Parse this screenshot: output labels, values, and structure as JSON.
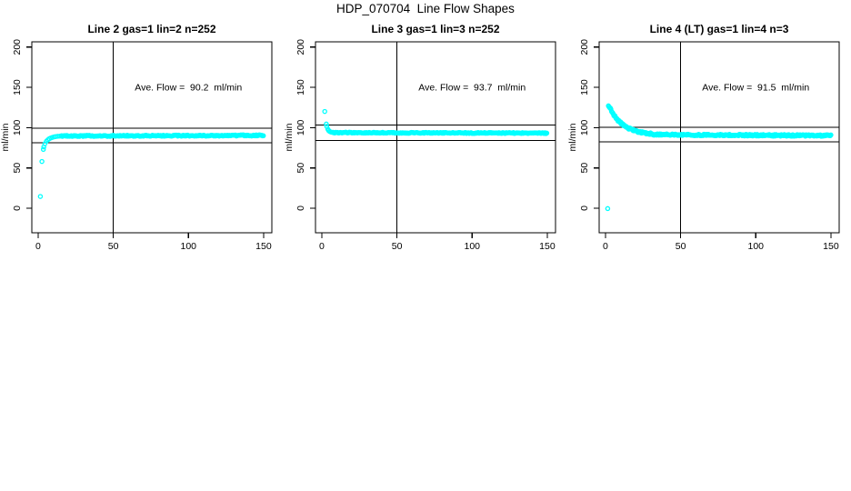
{
  "figure": {
    "title": "HDP_070704  Line Flow Shapes",
    "bg_color": "#ffffff",
    "axis_color": "#000000",
    "point_color": "#00ffff"
  },
  "chart_data": [
    {
      "type": "scatter",
      "title": "Line 2 gas=1 lin=2 n=252",
      "annotation": "Ave. Flow =  90.2  ml/min",
      "ave_flow_ml_min": 90.2,
      "n_points": 252,
      "ylabel": "ml/min",
      "xticks": [
        0,
        50,
        100,
        150
      ],
      "yticks": [
        0,
        50,
        100,
        150,
        200
      ],
      "xlim": [
        -4.2,
        155.5
      ],
      "ylim": [
        -30.5,
        206.5
      ],
      "hlines_y": [
        99.2,
        81.2
      ],
      "vline_x": 50,
      "annotation_xy": [
        100,
        150
      ],
      "head_points": [
        [
          1.5,
          14.5
        ],
        [
          2.5,
          58
        ],
        [
          3.5,
          73
        ],
        [
          3.8,
          76
        ],
        [
          4.5,
          80
        ],
        [
          5.5,
          83
        ],
        [
          6.5,
          85
        ],
        [
          7.5,
          86.3
        ],
        [
          8.5,
          87.2
        ],
        [
          9.5,
          87.9
        ],
        [
          10.5,
          88.4
        ],
        [
          11.5,
          88.8
        ],
        [
          13,
          89.2
        ],
        [
          14.5,
          89.5
        ]
      ],
      "segments": [
        {
          "kind": "plateau",
          "x_start": 15.5,
          "x_end": 150,
          "step": 0.6,
          "y_start": 89.7,
          "y_end": 90.3,
          "jitter": 0.7
        }
      ]
    },
    {
      "type": "scatter",
      "title": "Line 3 gas=1 lin=3 n=252",
      "annotation": "Ave. Flow =  93.7  ml/min",
      "ave_flow_ml_min": 93.7,
      "n_points": 252,
      "ylabel": "ml/min",
      "xticks": [
        0,
        50,
        100,
        150
      ],
      "yticks": [
        0,
        50,
        100,
        150,
        200
      ],
      "xlim": [
        -4.2,
        155.5
      ],
      "ylim": [
        -30.5,
        206.5
      ],
      "hlines_y": [
        103.1,
        84.3
      ],
      "vline_x": 50,
      "annotation_xy": [
        100,
        150
      ],
      "head_points": [
        [
          2,
          120
        ],
        [
          3,
          104.5
        ],
        [
          3.3,
          101.5
        ],
        [
          4,
          98
        ],
        [
          4.5,
          96.5
        ],
        [
          5.2,
          95.3
        ],
        [
          6,
          94.6
        ],
        [
          7,
          94.1
        ]
      ],
      "segments": [
        {
          "kind": "plateau",
          "x_start": 7.5,
          "x_end": 150,
          "step": 0.6,
          "y_start": 93.8,
          "y_end": 93.2,
          "jitter": 0.55
        }
      ]
    },
    {
      "type": "scatter",
      "title": "Line 4 (LT) gas=1 lin=4 n=3",
      "annotation": "Ave. Flow =  91.5  ml/min",
      "ave_flow_ml_min": 91.5,
      "n_points": 3,
      "ylabel": "ml/min",
      "xticks": [
        0,
        50,
        100,
        150
      ],
      "yticks": [
        0,
        50,
        100,
        150,
        200
      ],
      "xlim": [
        -4.2,
        155.5
      ],
      "ylim": [
        -30.5,
        206.5
      ],
      "hlines_y": [
        100.65,
        82.35
      ],
      "vline_x": 50,
      "annotation_xy": [
        100,
        150
      ],
      "head_points": [
        [
          1.5,
          -0.5
        ]
      ],
      "segments": [
        {
          "kind": "decay",
          "x_start": 2,
          "x_end": 30,
          "step": 0.4,
          "y0": 128,
          "y_inf": 90.8,
          "tau": 9,
          "jitter": 1.1
        },
        {
          "kind": "plateau",
          "x_start": 30,
          "x_end": 150,
          "step": 0.5,
          "y_start": 91.3,
          "y_end": 90.1,
          "jitter": 1.0
        }
      ]
    }
  ]
}
